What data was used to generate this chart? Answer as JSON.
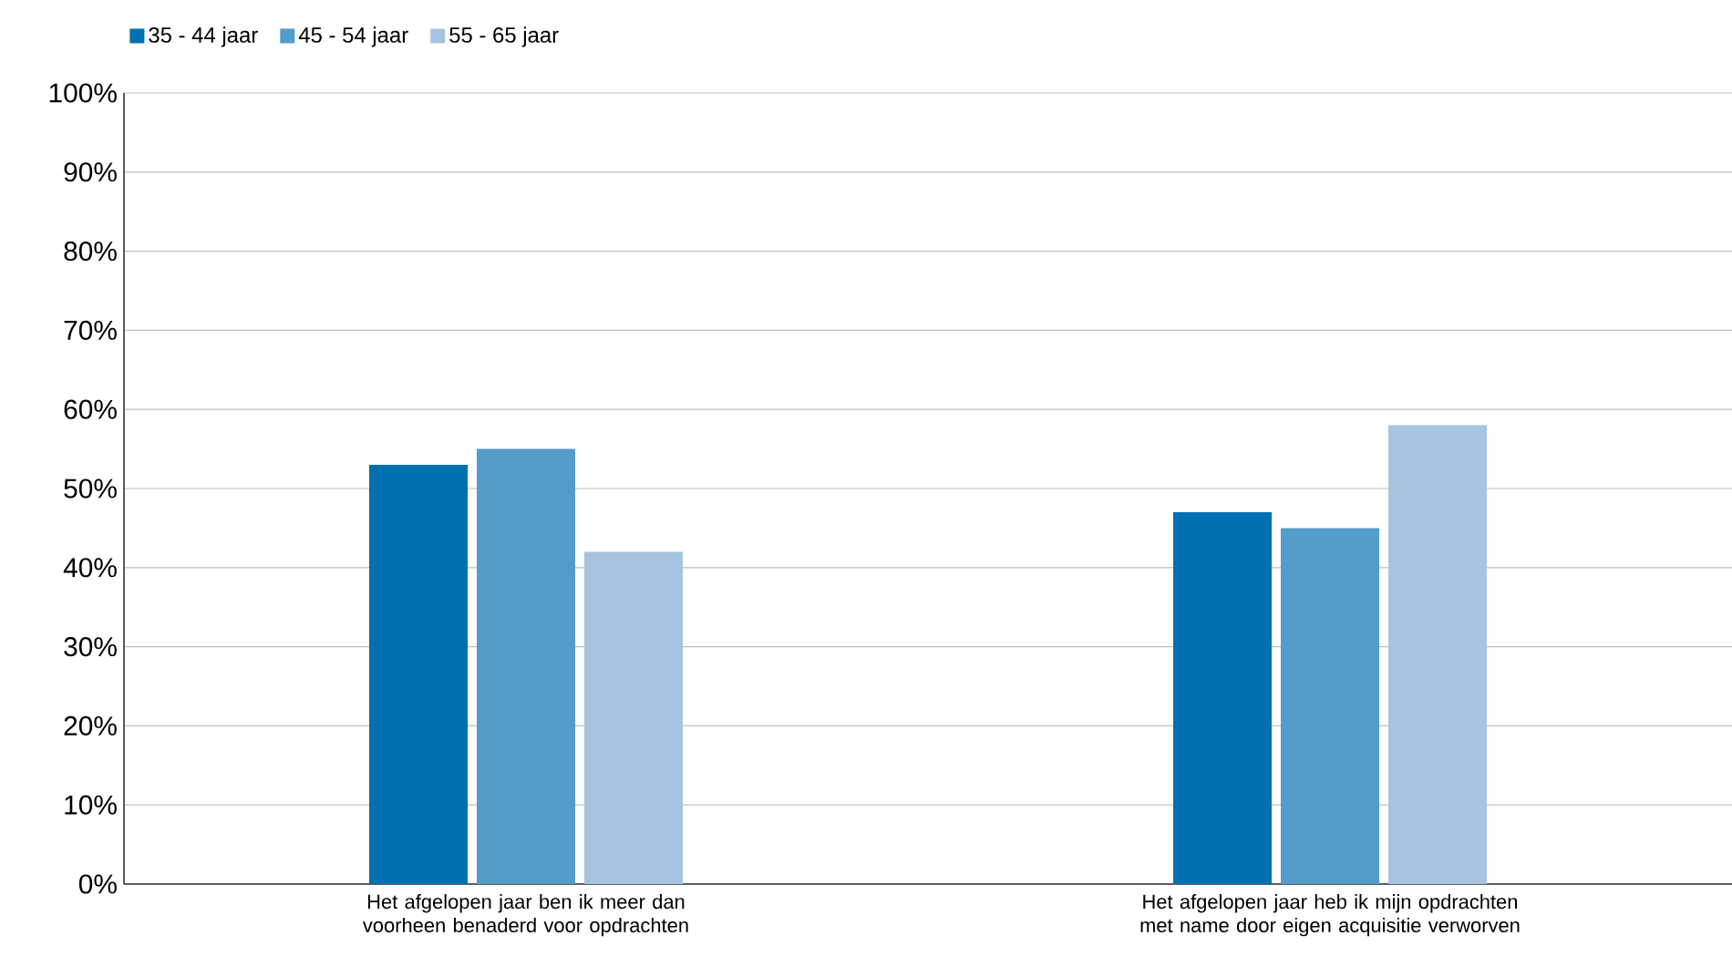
{
  "chart_data": {
    "type": "bar",
    "categories": [
      "Het afgelopen jaar ben ik meer dan voorheen benaderd voor opdrachten",
      "Het afgelopen jaar heb ik mijn opdrachten met name door eigen acquisitie verworven"
    ],
    "series": [
      {
        "name": "35 - 44 jaar",
        "color": "#0070b0",
        "values": [
          53,
          47
        ]
      },
      {
        "name": "45 - 54 jaar",
        "color": "#539dcb",
        "values": [
          55,
          45
        ]
      },
      {
        "name": "55 - 65 jaar",
        "color": "#a6c4e0",
        "values": [
          42,
          58
        ]
      }
    ],
    "ylim": [
      0,
      100
    ],
    "yticks": [
      {
        "value": 0,
        "label": "0%"
      },
      {
        "value": 10,
        "label": "10%"
      },
      {
        "value": 20,
        "label": "20%"
      },
      {
        "value": 30,
        "label": "30%"
      },
      {
        "value": 40,
        "label": "40%"
      },
      {
        "value": 50,
        "label": "50%"
      },
      {
        "value": 60,
        "label": "60%"
      },
      {
        "value": 70,
        "label": "70%"
      },
      {
        "value": 80,
        "label": "80%"
      },
      {
        "value": 90,
        "label": "90%"
      },
      {
        "value": 100,
        "label": "100%"
      }
    ],
    "grid": "y",
    "legend": "top left"
  }
}
